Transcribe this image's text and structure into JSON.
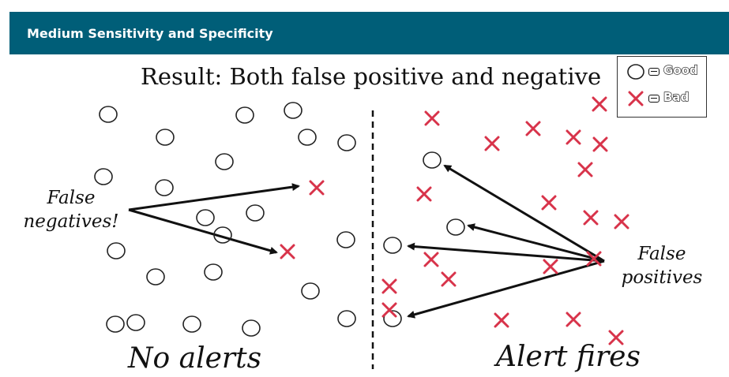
{
  "header": {
    "title": "Medium Sensitivity and Specificity"
  },
  "result_title": "Result: Both false positive and negative",
  "legend": {
    "good_label": "Good",
    "bad_label": "Bad"
  },
  "labels": {
    "false_negatives": "False negatives!",
    "false_positives": "False positives",
    "no_alerts": "No alerts",
    "alert_fires": "Alert fires"
  },
  "colors": {
    "header_bg": "#005e78",
    "bad_mark": "#d8334a",
    "good_mark": "#222222"
  },
  "icons": {
    "good": "circle-icon",
    "bad": "x-icon"
  }
}
